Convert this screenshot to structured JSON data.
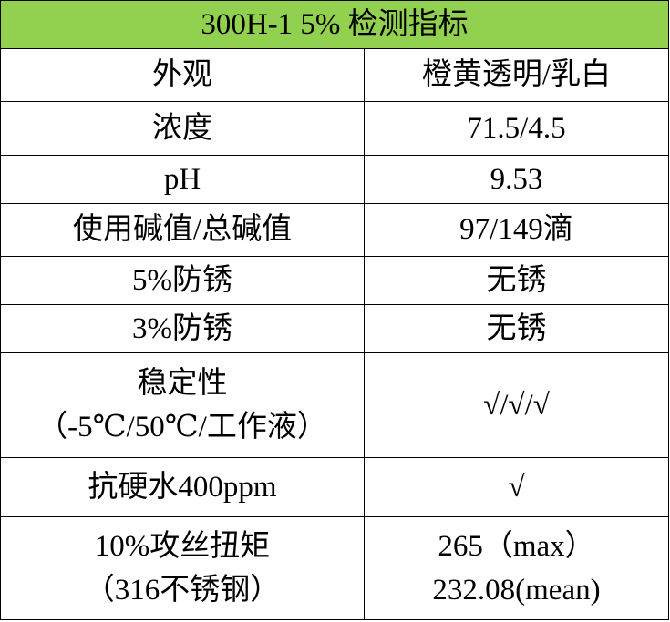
{
  "title": "300H-1 5% 检测指标",
  "colors": {
    "title_bg": "#92d050",
    "border": "#000000",
    "text": "#000000"
  },
  "rows": [
    {
      "label": [
        "外观"
      ],
      "value": [
        "橙黄透明/乳白"
      ]
    },
    {
      "label": [
        "浓度"
      ],
      "value": [
        "71.5/4.5"
      ]
    },
    {
      "label": [
        "pH"
      ],
      "value": [
        "9.53"
      ]
    },
    {
      "label": [
        "使用碱值/总碱值"
      ],
      "value": [
        "97/149滴"
      ]
    },
    {
      "label": [
        "5%防锈"
      ],
      "value": [
        "无锈"
      ]
    },
    {
      "label": [
        "3%防锈"
      ],
      "value": [
        "无锈"
      ]
    },
    {
      "label": [
        "稳定性",
        "（-5℃/50℃/工作液）"
      ],
      "value": [
        "√/√/√"
      ]
    },
    {
      "label": [
        "抗硬水400ppm"
      ],
      "value": [
        "√"
      ]
    },
    {
      "label": [
        "10%攻丝扭矩",
        "（316不锈钢）"
      ],
      "value": [
        "265（max）",
        "232.08(mean)"
      ]
    }
  ]
}
